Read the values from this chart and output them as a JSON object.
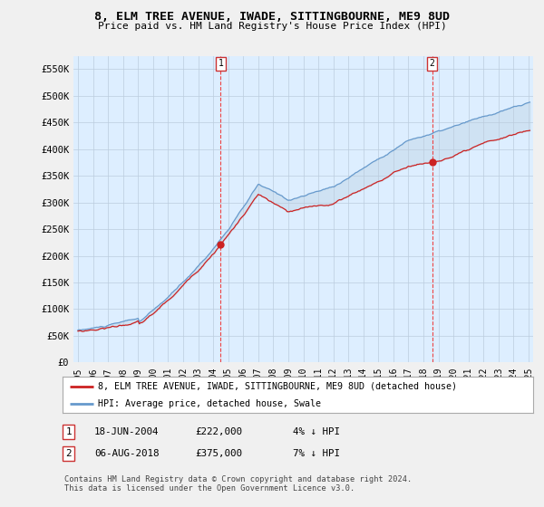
{
  "title": "8, ELM TREE AVENUE, IWADE, SITTINGBOURNE, ME9 8UD",
  "subtitle": "Price paid vs. HM Land Registry's House Price Index (HPI)",
  "ylim": [
    0,
    575000
  ],
  "yticks": [
    0,
    50000,
    100000,
    150000,
    200000,
    250000,
    300000,
    350000,
    400000,
    450000,
    500000,
    550000
  ],
  "ytick_labels": [
    "£0",
    "£50K",
    "£100K",
    "£150K",
    "£200K",
    "£250K",
    "£300K",
    "£350K",
    "£400K",
    "£450K",
    "£500K",
    "£550K"
  ],
  "hpi_color": "#6699cc",
  "price_color": "#cc2222",
  "fill_color": "#cce0f0",
  "dashed_line_color": "#ee4444",
  "sale1_year": 2004.46,
  "sale1_price": 222000,
  "sale2_year": 2018.58,
  "sale2_price": 375000,
  "legend_label_price": "8, ELM TREE AVENUE, IWADE, SITTINGBOURNE, ME9 8UD (detached house)",
  "legend_label_hpi": "HPI: Average price, detached house, Swale",
  "table_row1": [
    "1",
    "18-JUN-2004",
    "£222,000",
    "4% ↓ HPI"
  ],
  "table_row2": [
    "2",
    "06-AUG-2018",
    "£375,000",
    "7% ↓ HPI"
  ],
  "footnote": "Contains HM Land Registry data © Crown copyright and database right 2024.\nThis data is licensed under the Open Government Licence v3.0.",
  "background_color": "#f0f0f0",
  "plot_background": "#ddeeff",
  "grid_color": "#bbccdd"
}
